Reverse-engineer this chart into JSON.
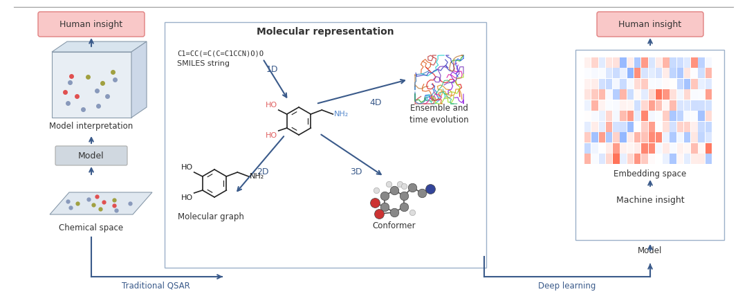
{
  "background": "#ffffff",
  "box_border_color": "#9bb0c9",
  "human_insight_fill": "#f9c8c8",
  "human_insight_edge": "#e08080",
  "human_insight_text": "Human insight",
  "model_box_fill": "#d0d8e0",
  "model_box_edge": "#aaaaaa",
  "model_box_text": "Model",
  "machine_insight_fill": "#d0d8e0",
  "machine_insight_edge": "#aaaaaa",
  "machine_insight_text": "Machine insight",
  "mol_rep_title": "Molecular representation",
  "chemical_space_text": "Chemical space",
  "model_interp_text": "Model interpretation",
  "embedding_space_text": "Embedding space",
  "conformer_text": "Conformer",
  "ensemble_text": "Ensemble and\ntime evolution",
  "mol_graph_text": "Molecular graph",
  "smiles_text": "SMILES string",
  "smiles_formula": "C1=CC(=C(C=C1CCN)O)O",
  "label_1d": "1D",
  "label_2d": "2D",
  "label_3d": "3D",
  "label_4d": "4D",
  "trad_qsar_text": "Traditional QSAR",
  "deep_learning_text": "Deep learning",
  "arrow_color": "#3a5a8a",
  "label_color": "#3a5a8a",
  "text_color": "#333333",
  "red_atom_color": "#e06060",
  "blue_atom_color": "#5588cc",
  "dot_red": "#e05050",
  "dot_blue": "#8899bb",
  "dot_olive": "#a0a040",
  "cube_front": "#e8eef4",
  "cube_top": "#d8e4ee",
  "cube_right": "#ccd8e8",
  "cube_edge": "#8899aa",
  "plane_fill": "#e0e8f0",
  "plane_edge": "#8899aa"
}
